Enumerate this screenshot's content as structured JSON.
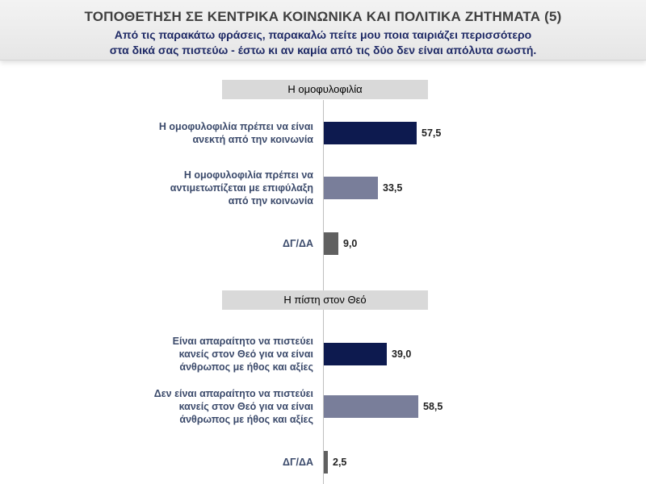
{
  "header": {
    "title": "ΤΟΠΟΘΕΤΗΣΗ ΣΕ ΚΕΝΤΡΙΚΑ ΚΟΙΝΩΝΙΚΑ ΚΑΙ ΠΟΛΙΤΙΚΑ ΖΗΤΗΜΑΤΑ (5)",
    "subtitle_line1": "Από τις παρακάτω φράσεις, παρακαλώ πείτε μου ποια ταιριάζει περισσότερο",
    "subtitle_line2": "στα δικά σας πιστεύω - έστω κι αν καμία από τις δύο δεν είναι απόλυτα σωστή."
  },
  "colors": {
    "navy": "#0d1a4f",
    "gray_blue": "#797e9a",
    "dark_gray": "#606060",
    "section_bg": "#d9d9d9"
  },
  "chart_data": {
    "type": "bar",
    "orientation": "horizontal",
    "xlim": [
      0,
      100
    ],
    "groups": [
      {
        "title": "Η ομοφυλοφιλία",
        "items": [
          {
            "label": [
              "Η ομοφυλοφιλία πρέπει να είναι",
              "ανεκτή από την κοινωνία"
            ],
            "value": 57.5,
            "display": "57,5",
            "color": "#0d1a4f"
          },
          {
            "label": [
              "Η ομοφυλοφιλία πρέπει να",
              "αντιμετωπίζεται με επιφύλαξη",
              "από την κοινωνία"
            ],
            "value": 33.5,
            "display": "33,5",
            "color": "#797e9a"
          },
          {
            "label": [
              "ΔΓ/ΔΑ"
            ],
            "value": 9.0,
            "display": "9,0",
            "color": "#606060"
          }
        ]
      },
      {
        "title": "Η πίστη στον Θεό",
        "items": [
          {
            "label": [
              "Είναι απαραίτητο να πιστεύει",
              "κανείς στον Θεό για να είναι",
              "άνθρωπος με ήθος και αξίες"
            ],
            "value": 39.0,
            "display": "39,0",
            "color": "#0d1a4f"
          },
          {
            "label": [
              "Δεν είναι απαραίτητο να πιστεύει",
              "κανείς στον Θεό για να είναι",
              "άνθρωπος με ήθος και αξίες"
            ],
            "value": 58.5,
            "display": "58,5",
            "color": "#797e9a"
          },
          {
            "label": [
              "ΔΓ/ΔΑ"
            ],
            "value": 2.5,
            "display": "2,5",
            "color": "#606060"
          }
        ]
      }
    ]
  }
}
